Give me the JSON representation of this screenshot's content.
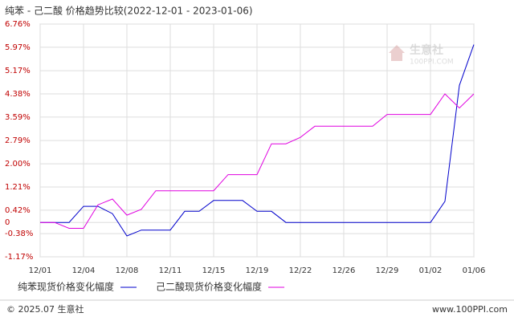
{
  "chart_data": {
    "type": "line",
    "title": "纯苯 - 己二酸 价格趋势比较(2022-12-01 - 2023-01-06)",
    "categories": [
      "12/01",
      null,
      null,
      "12/04",
      null,
      null,
      "12/08",
      null,
      null,
      "12/11",
      null,
      null,
      "12/15",
      null,
      null,
      "12/19",
      null,
      null,
      "12/22",
      null,
      null,
      "12/26",
      null,
      null,
      "12/29",
      null,
      null,
      "01/02",
      null,
      null,
      "01/06"
    ],
    "series": [
      {
        "name": "纯苯现货价格变化幅度",
        "color": "#0000cc",
        "values": [
          0,
          0,
          0,
          0.55,
          0.55,
          0.3,
          -0.46,
          -0.26,
          -0.26,
          -0.26,
          0.38,
          0.38,
          0.75,
          0.75,
          0.75,
          0.38,
          0.38,
          0,
          0,
          0,
          0,
          0,
          0,
          0,
          0,
          0,
          0,
          0,
          0.72,
          4.67,
          6.06
        ]
      },
      {
        "name": "己二酸现货价格变化幅度",
        "color": "#e000e0",
        "values": [
          0,
          0,
          -0.2,
          -0.2,
          0.6,
          0.8,
          0.25,
          0.45,
          1.08,
          1.08,
          1.08,
          1.08,
          1.08,
          1.63,
          1.63,
          1.63,
          2.68,
          2.68,
          2.9,
          3.28,
          3.28,
          3.28,
          3.28,
          3.28,
          3.68,
          3.68,
          3.68,
          3.68,
          4.38,
          3.9,
          4.38
        ]
      }
    ],
    "ylim": [
      -1.17,
      6.76
    ],
    "yticks": [
      {
        "value": -1.17,
        "label": "-1.17%"
      },
      {
        "value": -0.38,
        "label": "-0.38%"
      },
      0,
      {
        "value": 0.42,
        "label": "0.42%"
      },
      {
        "value": 1.21,
        "label": "1.21%"
      },
      {
        "value": 2.0,
        "label": "2.00%"
      },
      {
        "value": 2.79,
        "label": "2.79%"
      },
      {
        "value": 3.59,
        "label": "3.59%"
      },
      {
        "value": 4.38,
        "label": "4.38%"
      },
      {
        "value": 5.17,
        "label": "5.17%"
      },
      {
        "value": 5.97,
        "label": "5.97%"
      },
      {
        "value": 6.76,
        "label": "6.76%"
      }
    ],
    "grid": true,
    "legend": "bottom",
    "watermark": [
      "生意社",
      "100PPI.COM"
    ],
    "footer": [
      "© 2025.07 生意社",
      "www.100PPI.com"
    ]
  }
}
